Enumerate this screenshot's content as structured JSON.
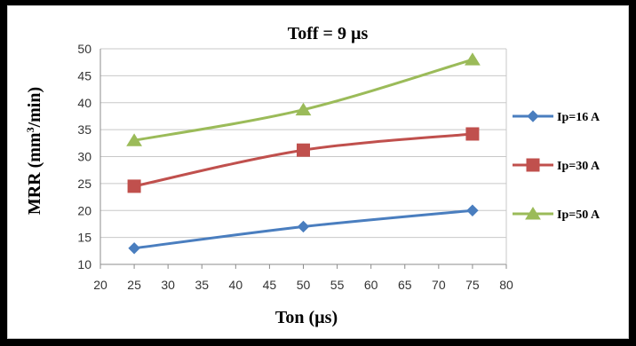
{
  "chart_data": {
    "type": "line",
    "title": "Toff = 9 µs",
    "xlabel": "Ton (µs)",
    "ylabel_main": "MRR (mm",
    "ylabel_sup": "3",
    "ylabel_tail": "/min)",
    "xlim": [
      20,
      80
    ],
    "ylim": [
      10,
      50
    ],
    "x_ticks": [
      "20",
      "25",
      "30",
      "35",
      "40",
      "45",
      "50",
      "55",
      "60",
      "65",
      "70",
      "75",
      "80"
    ],
    "y_ticks": [
      "10",
      "15",
      "20",
      "25",
      "30",
      "35",
      "40",
      "45",
      "50"
    ],
    "grid": "horizontal",
    "legend_position": "right",
    "x": [
      25,
      50,
      75
    ],
    "series": [
      {
        "name": "Ip=16 A",
        "values": [
          13,
          17,
          20
        ],
        "color": "#4a7ebf",
        "marker": "diamond"
      },
      {
        "name": "Ip=30 A",
        "values": [
          24.5,
          31.2,
          34.2
        ],
        "color": "#c0504d",
        "marker": "square"
      },
      {
        "name": "Ip=50 A",
        "values": [
          33,
          38.7,
          48
        ],
        "color": "#9bbb59",
        "marker": "triangle"
      }
    ]
  }
}
